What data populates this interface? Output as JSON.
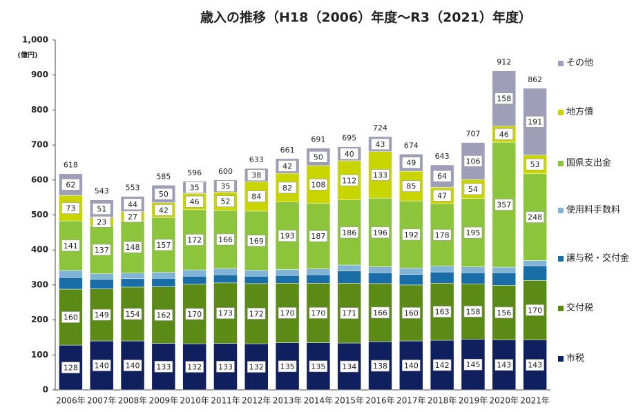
{
  "chart_data": {
    "type": "stacked_bar",
    "title": "歳入の推移（H18（2006）年度～R3（2021）年度）",
    "y_unit": "(億円)",
    "categories": [
      "2006年",
      "2007年",
      "2008年",
      "2009年",
      "2010年",
      "2011年",
      "2012年",
      "2013年",
      "2014年",
      "2015年",
      "2016年",
      "2017年",
      "2018年",
      "2019年",
      "2020年",
      "2021年"
    ],
    "ylim": [
      0,
      1000
    ],
    "yticks": [
      0,
      100,
      200,
      300,
      400,
      500,
      600,
      700,
      800,
      900,
      {
        "value": 1000,
        "label": "1,000"
      }
    ],
    "series": [
      {
        "name": "市税",
        "color": "#101f5e",
        "show_labels": true,
        "values": [
          128,
          140,
          140,
          133,
          132,
          133,
          132,
          135,
          135,
          134,
          138,
          140,
          142,
          145,
          143,
          143
        ]
      },
      {
        "name": "交付税",
        "color": "#5c8a16",
        "show_labels": true,
        "values": [
          160,
          149,
          154,
          162,
          170,
          173,
          172,
          170,
          170,
          171,
          166,
          160,
          163,
          158,
          156,
          170
        ]
      },
      {
        "name": "譲与税・交付金",
        "color": "#1a6ea8",
        "show_labels": false,
        "values": [
          33,
          27,
          24,
          24,
          23,
          23,
          21,
          22,
          24,
          35,
          31,
          30,
          32,
          32,
          36,
          42
        ]
      },
      {
        "name": "使用料手数料",
        "color": "#80b3d6",
        "show_labels": false,
        "values": [
          21,
          16,
          16,
          17,
          18,
          18,
          17,
          17,
          17,
          17,
          17,
          18,
          17,
          17,
          16,
          15
        ]
      },
      {
        "name": "国県支出金",
        "color": "#8cc43c",
        "show_labels": true,
        "values": [
          141,
          137,
          148,
          157,
          172,
          166,
          169,
          193,
          187,
          186,
          196,
          192,
          178,
          195,
          357,
          248
        ]
      },
      {
        "name": "地方債",
        "color": "#c9d500",
        "show_labels": true,
        "values": [
          73,
          23,
          27,
          42,
          46,
          52,
          84,
          82,
          108,
          112,
          133,
          85,
          47,
          54,
          46,
          53
        ]
      },
      {
        "name": "その他",
        "color": "#9e9eb9",
        "show_labels": true,
        "values": [
          62,
          51,
          44,
          50,
          35,
          35,
          38,
          42,
          50,
          40,
          43,
          49,
          64,
          106,
          158,
          191
        ]
      }
    ],
    "totals": [
      618,
      543,
      553,
      585,
      596,
      600,
      633,
      661,
      691,
      695,
      724,
      674,
      643,
      707,
      912,
      862
    ]
  }
}
